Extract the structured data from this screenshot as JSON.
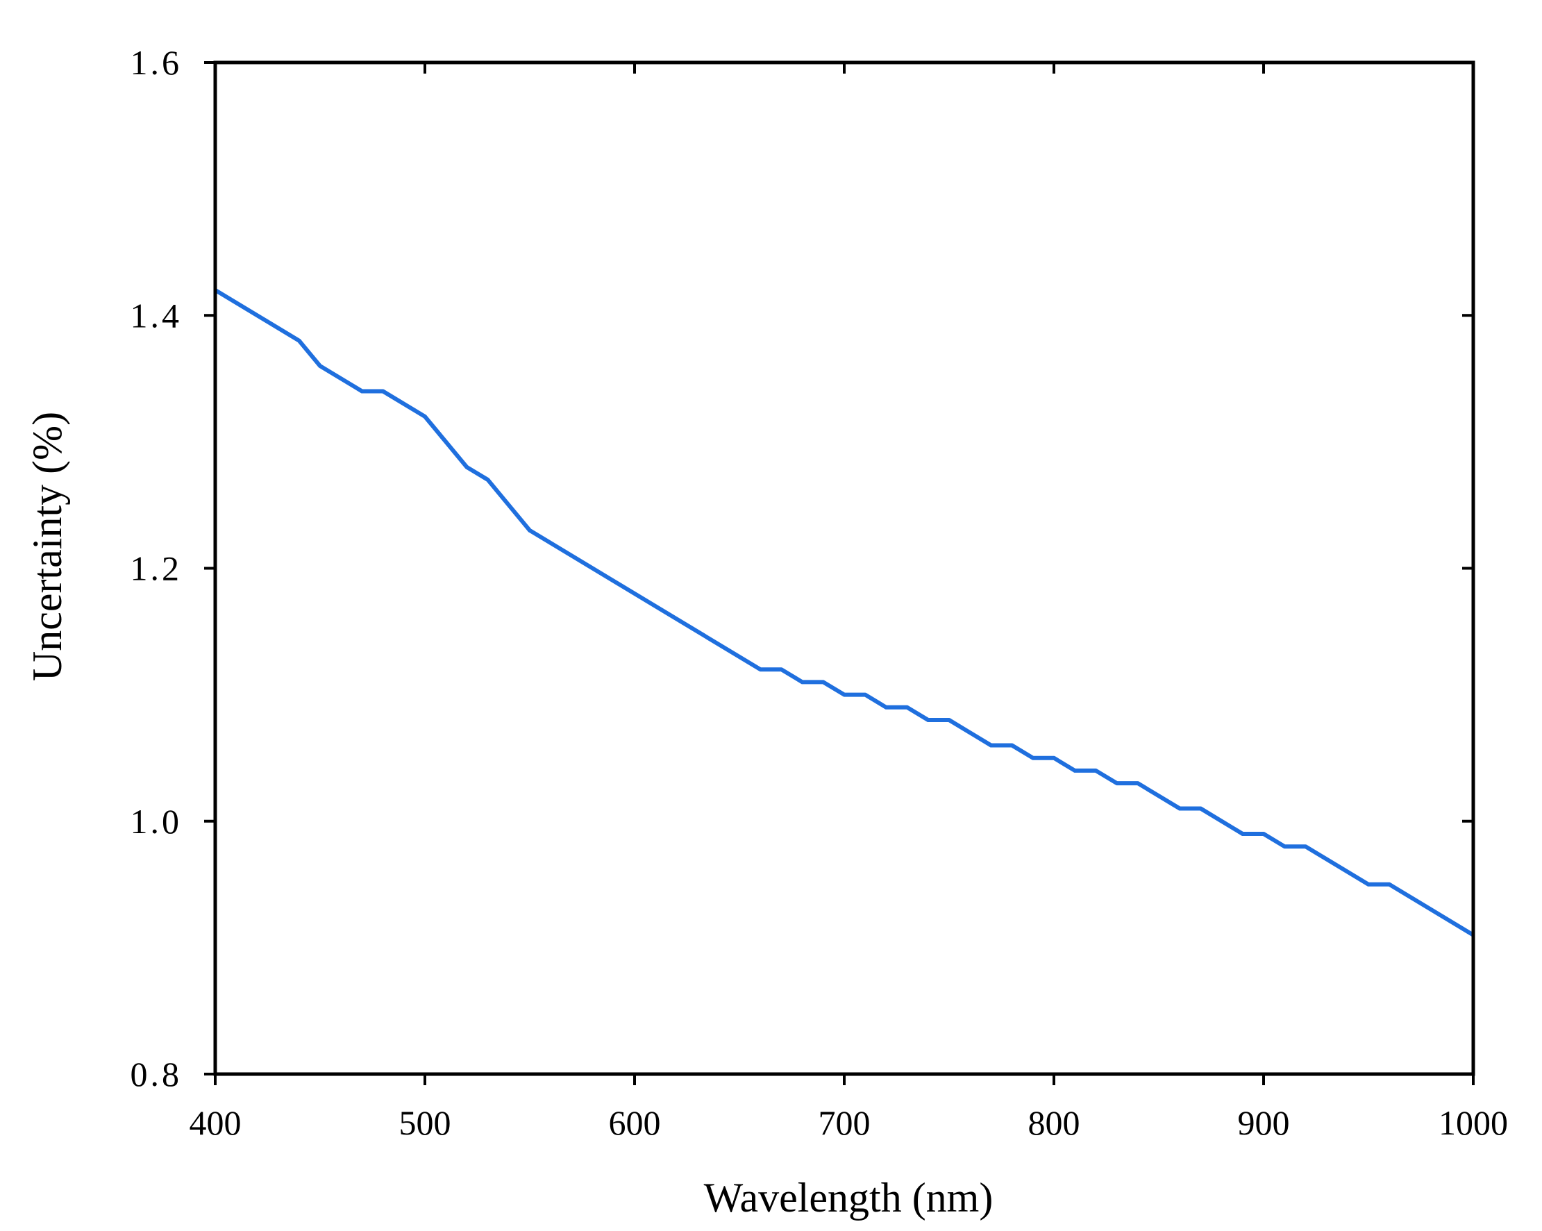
{
  "chart_data": {
    "type": "line",
    "title": "",
    "xlabel": "Wavelength (nm)",
    "ylabel": "Uncertainty (%)",
    "xlim": [
      400,
      1000
    ],
    "ylim": [
      0.8,
      1.6
    ],
    "x_ticks": [
      "400",
      "500",
      "600",
      "700",
      "800",
      "900",
      "1000"
    ],
    "y_ticks": [
      "0.8",
      "1.0",
      "1.2",
      "1.4",
      "1.6"
    ],
    "grid": false,
    "legend": "none",
    "colors": {
      "line": "#1f6fde",
      "axes": "#000000"
    },
    "series": [
      {
        "x": [
          400,
          440,
          450,
          470,
          480,
          500,
          520,
          530,
          550,
          660,
          670,
          680,
          690,
          700,
          710,
          720,
          730,
          740,
          750,
          770,
          780,
          790,
          800,
          810,
          820,
          830,
          840,
          860,
          870,
          890,
          900,
          910,
          920,
          950,
          960,
          1000
        ],
        "y": [
          1.42,
          1.38,
          1.36,
          1.34,
          1.34,
          1.32,
          1.28,
          1.27,
          1.23,
          1.12,
          1.12,
          1.11,
          1.11,
          1.1,
          1.1,
          1.09,
          1.09,
          1.08,
          1.08,
          1.06,
          1.06,
          1.05,
          1.05,
          1.04,
          1.04,
          1.03,
          1.03,
          1.01,
          1.01,
          0.99,
          0.99,
          0.98,
          0.98,
          0.95,
          0.95,
          0.91
        ]
      }
    ]
  }
}
